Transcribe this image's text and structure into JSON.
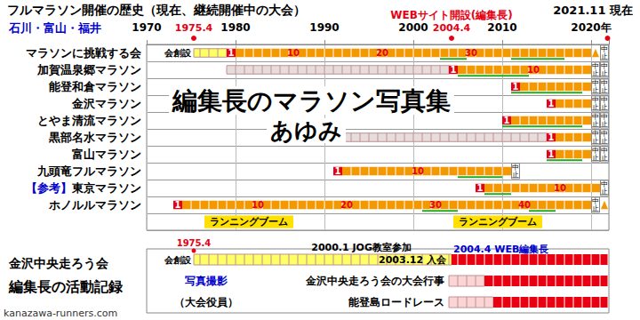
{
  "chart_data": {
    "type": "timeline",
    "title": "フルマラソン開催の歴史（現在、継続開催中の大会）",
    "subtitle": "石川・富山・福井",
    "as_of": {
      "x": 2021.85,
      "label": "2021.11 現在"
    },
    "xlim": [
      1970,
      2022
    ],
    "xticks": [
      1970,
      1980,
      1990,
      2000,
      2010,
      {
        "value": 2020,
        "label": "2020年"
      }
    ],
    "grid": true,
    "axis_markers": [
      {
        "x": 1975.3,
        "label": "1975.4"
      },
      {
        "x": 2004.3,
        "label": "2004.4",
        "note": "WEBサイト開設(編集長)"
      }
    ],
    "cancel_label": "中止",
    "watermark": [
      "編集長のマラソン写真集",
      "あゆみ"
    ],
    "footer": "kanazawa-runners.com",
    "rows": [
      {
        "name": "マラソンに挑戦する会",
        "start_note": "会創設",
        "segments": [
          {
            "start": 1975.3,
            "end": 1979,
            "color": "#ffff66"
          },
          {
            "start": 1979,
            "end": 1980,
            "color": "#e60012"
          },
          {
            "start": 1980,
            "end": 2020,
            "color": "#f39800"
          }
        ],
        "labels": [
          {
            "x": 1979,
            "text": "1",
            "color": "#ffffff"
          },
          {
            "x": 1986,
            "text": "10",
            "color": "#e60012"
          },
          {
            "x": 1996,
            "text": "20",
            "color": "#e60012"
          },
          {
            "x": 2006,
            "text": "30",
            "color": "#e60012"
          }
        ],
        "underlines": [
          {
            "start": 2003,
            "end": 2006,
            "color": "#22aa22"
          },
          {
            "start": 2011,
            "end": 2017,
            "color": "#22aa22"
          }
        ],
        "pending": [
          2020
        ],
        "cancelled": [
          2021
        ]
      },
      {
        "name": "加賀温泉郷マラソン",
        "segments": [
          {
            "start": 1979,
            "end": 2004,
            "color": "#e6dcdc"
          },
          {
            "start": 2004,
            "end": 2005,
            "color": "#e60012"
          },
          {
            "start": 2005,
            "end": 2020,
            "color": "#f39800"
          }
        ],
        "labels": [
          {
            "x": 2004,
            "text": "1",
            "color": "#ffffff"
          },
          {
            "x": 2013,
            "text": "10",
            "color": "#e60012"
          }
        ],
        "underlines": [
          {
            "start": 2005,
            "end": 2013,
            "color": "#22aa22"
          }
        ],
        "cancelled": [
          2020,
          2021
        ]
      },
      {
        "name": "能登和倉マラソン",
        "segments": [
          {
            "start": 2011,
            "end": 2012,
            "color": "#e60012"
          },
          {
            "start": 2012,
            "end": 2020,
            "color": "#f39800"
          }
        ],
        "labels": [
          {
            "x": 2011,
            "text": "1",
            "color": "#ffffff"
          }
        ],
        "underlines": [
          {
            "start": 2011,
            "end": 2019,
            "color": "#22aa22"
          }
        ],
        "cancelled": [
          2020,
          2021
        ]
      },
      {
        "name": "金沢マラソン",
        "segments": [
          {
            "start": 2015,
            "end": 2016,
            "color": "#e60012"
          },
          {
            "start": 2016,
            "end": 2020,
            "color": "#f39800"
          }
        ],
        "labels": [
          {
            "x": 2015,
            "text": "1",
            "color": "#ffffff"
          }
        ],
        "cancelled": [
          2020,
          2021
        ]
      },
      {
        "name": "とやま清流マラソン",
        "segments": [
          {
            "start": 2010,
            "end": 2011,
            "color": "#e60012"
          },
          {
            "start": 2011,
            "end": 2020,
            "color": "#f39800"
          }
        ],
        "labels": [
          {
            "x": 2010,
            "text": "1",
            "color": "#ffffff"
          }
        ],
        "underlines": [
          {
            "start": 2010,
            "end": 2019,
            "color": "#22aa22"
          }
        ],
        "cancelled": [
          2020,
          2021
        ]
      },
      {
        "name": "黒部名水マラソン",
        "segments": [
          {
            "start": 1985,
            "end": 2015,
            "color": "#e6dcdc"
          },
          {
            "start": 2015,
            "end": 2016,
            "color": "#e60012"
          },
          {
            "start": 2016,
            "end": 2020,
            "color": "#f39800"
          }
        ],
        "labels": [
          {
            "x": 2015,
            "text": "1",
            "color": "#ffffff"
          }
        ],
        "cancelled": [
          2020,
          2021
        ]
      },
      {
        "name": "富山マラソン",
        "segments": [
          {
            "start": 2015,
            "end": 2016,
            "color": "#e60012"
          },
          {
            "start": 2016,
            "end": 2020,
            "color": "#f39800"
          }
        ],
        "labels": [
          {
            "x": 2015,
            "text": "1",
            "color": "#ffffff"
          }
        ],
        "underlines": [
          {
            "start": 2015,
            "end": 2019,
            "color": "#22aa22"
          }
        ],
        "cancelled": [
          2020,
          2021
        ]
      },
      {
        "name": "九頭竜フルマラソン",
        "segments": [
          {
            "start": 1991,
            "end": 1992,
            "color": "#e60012"
          },
          {
            "start": 1992,
            "end": 2011,
            "color": "#f39800"
          }
        ],
        "labels": [
          {
            "x": 1991,
            "text": "1",
            "color": "#ffffff"
          },
          {
            "x": 2000,
            "text": "10",
            "color": "#e60012"
          }
        ],
        "underlines": [
          {
            "start": 2005,
            "end": 2010,
            "color": "#22aa22"
          }
        ],
        "cancelled": [
          2011
        ]
      },
      {
        "name": "東京マラソン",
        "prefix": "【参考】",
        "segments": [
          {
            "start": 2007,
            "end": 2008,
            "color": "#e60012"
          },
          {
            "start": 2008,
            "end": 2021,
            "color": "#f39800"
          }
        ],
        "labels": [
          {
            "x": 2007,
            "text": "1",
            "color": "#ffffff"
          },
          {
            "x": 2016,
            "text": "10",
            "color": "#e60012"
          }
        ],
        "underlines": [
          {
            "start": 2008,
            "end": 2011,
            "color": "#22aa22"
          }
        ],
        "cancelled": [
          2021
        ]
      },
      {
        "name": "ホノルルマラソン",
        "segments": [
          {
            "start": 1973,
            "end": 1974,
            "color": "#e60012"
          },
          {
            "start": 1974,
            "end": 2020,
            "color": "#f39800"
          }
        ],
        "labels": [
          {
            "x": 1973,
            "text": "1",
            "color": "#ffffff"
          },
          {
            "x": 1982,
            "text": "10",
            "color": "#e60012"
          },
          {
            "x": 1992,
            "text": "20",
            "color": "#e60012"
          },
          {
            "x": 2002,
            "text": "30",
            "color": "#e60012"
          },
          {
            "x": 2012,
            "text": "40",
            "color": "#e60012"
          }
        ],
        "underlines": [
          {
            "start": 2001,
            "end": 2005,
            "color": "#22aa22"
          },
          {
            "start": 2013,
            "end": 2016,
            "color": "#22aa22"
          }
        ],
        "cancelled": [
          2020
        ],
        "pending": [
          2021
        ]
      },
      {
        "name": null,
        "segments": [
          {
            "start": 1976.5,
            "end": 1986.5,
            "color": "#ffe000",
            "text": "ランニングブーム"
          },
          {
            "start": 2004.5,
            "end": 2014.5,
            "color": "#ffe000",
            "text": "ランニングブーム"
          }
        ]
      }
    ],
    "activity": {
      "heading": [
        "金沢中央走ろう会",
        "編集長の活動記録"
      ],
      "group_label": [
        "写真撮影",
        "（大会役員）"
      ],
      "rows": [
        {
          "name": null,
          "start_note": "会創設",
          "start_label": "1975.4",
          "segments": [
            {
              "start": 1975.3,
              "end": 2004.3,
              "color": "#ffff66"
            },
            {
              "start": 2004.3,
              "end": 2021.85,
              "color": "#e60012"
            }
          ],
          "notes": [
            {
              "x": 2000.0,
              "text": "2000.1 JOG教室参加"
            },
            {
              "x": 2003.9,
              "text": "2003.12 入会"
            },
            {
              "x": 2004.3,
              "text": "2004.4 WEB編集長"
            }
          ]
        },
        {
          "name": "金沢中央走ろう会の大会行事",
          "segments": [
            {
              "start": 2004,
              "end": 2008,
              "color": "#fbd5d5"
            },
            {
              "start": 2008,
              "end": 2021.85,
              "color": "#e60012"
            }
          ]
        },
        {
          "name": "能登島ロードレース",
          "segments": [
            {
              "start": 2004,
              "end": 2009,
              "color": "#fbd5d5"
            },
            {
              "start": 2009,
              "end": 2021.85,
              "color": "#e60012"
            }
          ]
        }
      ]
    }
  }
}
